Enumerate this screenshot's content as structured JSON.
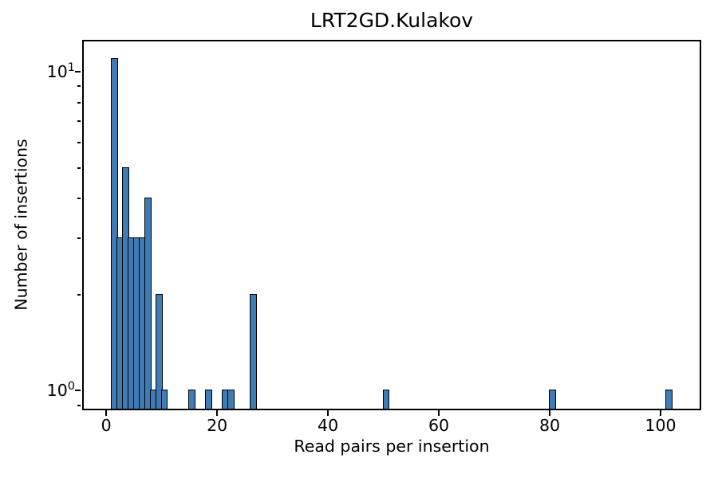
{
  "chart_data": {
    "type": "bar",
    "subtype": "histogram",
    "title": "LRT2GD.Kulakov",
    "xlabel": "Read pairs per insertion",
    "ylabel": "Number of insertions",
    "yscale": "log",
    "grid": false,
    "legend": false,
    "bar_color": "#3f7cb6",
    "bar_edge_color": "#000000",
    "bin_width": 1,
    "bars": [
      {
        "x": 1,
        "count": 11
      },
      {
        "x": 2,
        "count": 3
      },
      {
        "x": 3,
        "count": 5
      },
      {
        "x": 4,
        "count": 3
      },
      {
        "x": 5,
        "count": 3
      },
      {
        "x": 6,
        "count": 3
      },
      {
        "x": 7,
        "count": 4
      },
      {
        "x": 8,
        "count": 1
      },
      {
        "x": 9,
        "count": 2
      },
      {
        "x": 10,
        "count": 1
      },
      {
        "x": 15,
        "count": 1
      },
      {
        "x": 18,
        "count": 1
      },
      {
        "x": 21,
        "count": 1
      },
      {
        "x": 22,
        "count": 1
      },
      {
        "x": 26,
        "count": 2
      },
      {
        "x": 50,
        "count": 1
      },
      {
        "x": 80,
        "count": 1
      },
      {
        "x": 101,
        "count": 1
      }
    ],
    "xlim": [
      -4.05,
      107.05
    ],
    "ylim": [
      0.877,
      12.45
    ],
    "x_ticks": [
      {
        "value": 0,
        "label": "0"
      },
      {
        "value": 20,
        "label": "20"
      },
      {
        "value": 40,
        "label": "40"
      },
      {
        "value": 60,
        "label": "60"
      },
      {
        "value": 80,
        "label": "80"
      },
      {
        "value": 100,
        "label": "100"
      }
    ],
    "y_ticks": [
      {
        "value": 1,
        "base": "10",
        "exp": "0"
      },
      {
        "value": 10,
        "base": "10",
        "exp": "1"
      }
    ],
    "y_minor_ticks": [
      0.9,
      2,
      3,
      4,
      5,
      6,
      7,
      8,
      9
    ]
  }
}
